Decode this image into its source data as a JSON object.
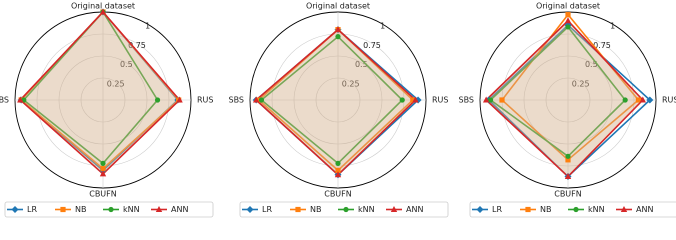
{
  "chart_data": [
    {
      "type": "radar",
      "axes": [
        "Original dataset",
        "RUS",
        "CBUFN",
        "SBS"
      ],
      "rlim": [
        0,
        1
      ],
      "rticks": [
        0.25,
        0.5,
        0.75,
        1
      ],
      "fill_series": "ANN",
      "fill_color": "#d2b08c",
      "series": [
        {
          "name": "LR",
          "color": "#1f77b4",
          "marker": "diamond",
          "values": [
            1.0,
            0.85,
            0.8,
            0.93
          ]
        },
        {
          "name": "NB",
          "color": "#ff7f0e",
          "marker": "square",
          "values": [
            1.0,
            0.86,
            0.78,
            0.93
          ]
        },
        {
          "name": "kNN",
          "color": "#2ca02c",
          "marker": "circle",
          "values": [
            1.0,
            0.62,
            0.72,
            0.9
          ]
        },
        {
          "name": "ANN",
          "color": "#d62728",
          "marker": "triangle",
          "values": [
            1.0,
            0.87,
            0.84,
            0.94
          ]
        }
      ]
    },
    {
      "type": "radar",
      "axes": [
        "Original dataset",
        "RUS",
        "CBUFN",
        "SBS"
      ],
      "rlim": [
        0,
        1
      ],
      "rticks": [
        0.25,
        0.5,
        0.75,
        1
      ],
      "fill_series": "ANN",
      "fill_color": "#d2b08c",
      "series": [
        {
          "name": "LR",
          "color": "#1f77b4",
          "marker": "diamond",
          "values": [
            0.8,
            0.91,
            0.85,
            0.93
          ]
        },
        {
          "name": "NB",
          "color": "#ff7f0e",
          "marker": "square",
          "values": [
            0.8,
            0.85,
            0.8,
            0.9
          ]
        },
        {
          "name": "kNN",
          "color": "#2ca02c",
          "marker": "circle",
          "values": [
            0.72,
            0.73,
            0.72,
            0.87
          ]
        },
        {
          "name": "ANN",
          "color": "#d62728",
          "marker": "triangle",
          "values": [
            0.8,
            0.88,
            0.85,
            0.93
          ]
        }
      ]
    },
    {
      "type": "radar",
      "axes": [
        "Original dataset",
        "RUS",
        "CBUFN",
        "SBS"
      ],
      "rlim": [
        0,
        1
      ],
      "rticks": [
        0.25,
        0.5,
        0.75,
        1
      ],
      "fill_series": "ANN",
      "fill_color": "#d2b08c",
      "series": [
        {
          "name": "LR",
          "color": "#1f77b4",
          "marker": "diamond",
          "values": [
            0.85,
            0.93,
            0.87,
            0.9
          ]
        },
        {
          "name": "NB",
          "color": "#ff7f0e",
          "marker": "square",
          "values": [
            0.97,
            0.8,
            0.68,
            0.75
          ]
        },
        {
          "name": "kNN",
          "color": "#2ca02c",
          "marker": "circle",
          "values": [
            0.83,
            0.65,
            0.64,
            0.88
          ]
        },
        {
          "name": "ANN",
          "color": "#d62728",
          "marker": "triangle",
          "values": [
            0.9,
            0.85,
            0.87,
            0.93
          ]
        }
      ]
    }
  ]
}
